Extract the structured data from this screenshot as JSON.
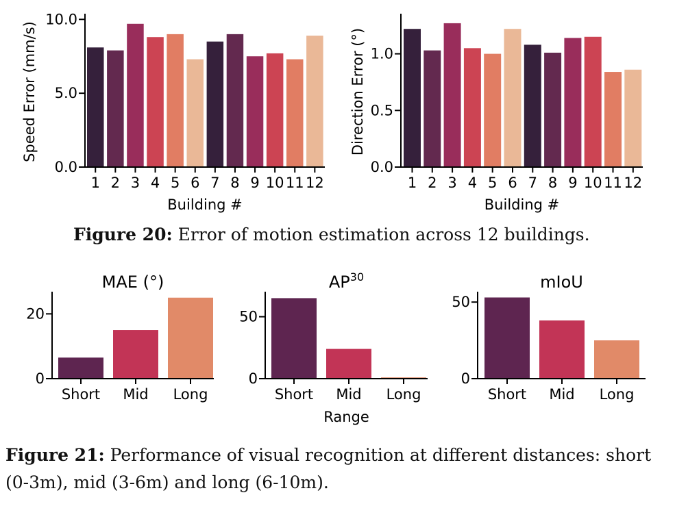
{
  "figure20": {
    "label": "Figure 20:",
    "text": "Error of motion estimation across 12 buildings.",
    "xlabel": "Building #",
    "categories": [
      "1",
      "2",
      "3",
      "4",
      "5",
      "6",
      "7",
      "8",
      "9",
      "10",
      "11",
      "12"
    ],
    "palette": [
      "#35203b",
      "#63294f",
      "#992d5b",
      "#cc4453",
      "#e17d63",
      "#eab897"
    ]
  },
  "figure21": {
    "label": "Figure 21:",
    "text_line1": "Performance of visual recognition at different distances: short",
    "text_line2": "(0-3m), mid (3-6m) and long (6-10m).",
    "shared_xlabel": "Range",
    "palette": [
      "#5e2550",
      "#c23456",
      "#e18a68"
    ]
  },
  "chart_data": [
    {
      "id": "speed",
      "type": "bar",
      "ylabel": "Speed Error (mm/s)",
      "xlabel": "Building #",
      "categories": [
        "1",
        "2",
        "3",
        "4",
        "5",
        "6",
        "7",
        "8",
        "9",
        "10",
        "11",
        "12"
      ],
      "values": [
        8.1,
        7.9,
        9.7,
        8.8,
        9.0,
        7.3,
        8.5,
        9.0,
        7.5,
        7.7,
        7.3,
        8.9
      ],
      "ylim": [
        0,
        10.2
      ],
      "yticks": [
        0,
        5,
        10
      ],
      "yticklabels": [
        "0.0",
        "5.0",
        "10.0"
      ]
    },
    {
      "id": "direction",
      "type": "bar",
      "ylabel": "Direction Error (°)",
      "xlabel": "Building #",
      "categories": [
        "1",
        "2",
        "3",
        "4",
        "5",
        "6",
        "7",
        "8",
        "9",
        "10",
        "11",
        "12"
      ],
      "values": [
        1.22,
        1.03,
        1.27,
        1.05,
        1.0,
        1.22,
        1.08,
        1.01,
        1.14,
        1.15,
        0.84,
        0.86
      ],
      "ylim": [
        0,
        1.33
      ],
      "yticks": [
        0,
        0.5,
        1.0
      ],
      "yticklabels": [
        "0.0",
        "0.5",
        "1.0"
      ]
    },
    {
      "id": "mae",
      "type": "bar",
      "title": "MAE (°)",
      "title_sup": "",
      "categories": [
        "Short",
        "Mid",
        "Long"
      ],
      "values": [
        6.5,
        15,
        25
      ],
      "ylim": [
        0,
        26
      ],
      "yticks": [
        0,
        20
      ],
      "yticklabels": [
        "0",
        "20"
      ]
    },
    {
      "id": "ap",
      "type": "bar",
      "title": "AP",
      "title_sup": "30",
      "xlabel": "Range",
      "categories": [
        "Short",
        "Mid",
        "Long"
      ],
      "values": [
        65,
        24,
        1
      ],
      "ylim": [
        0,
        68
      ],
      "yticks": [
        0,
        50
      ],
      "yticklabels": [
        "0",
        "50"
      ]
    },
    {
      "id": "miou",
      "type": "bar",
      "title": "mIoU",
      "title_sup": "",
      "categories": [
        "Short",
        "Mid",
        "Long"
      ],
      "values": [
        53,
        38,
        25
      ],
      "ylim": [
        0,
        55
      ],
      "yticks": [
        0,
        50
      ],
      "yticklabels": [
        "0",
        "50"
      ]
    }
  ]
}
